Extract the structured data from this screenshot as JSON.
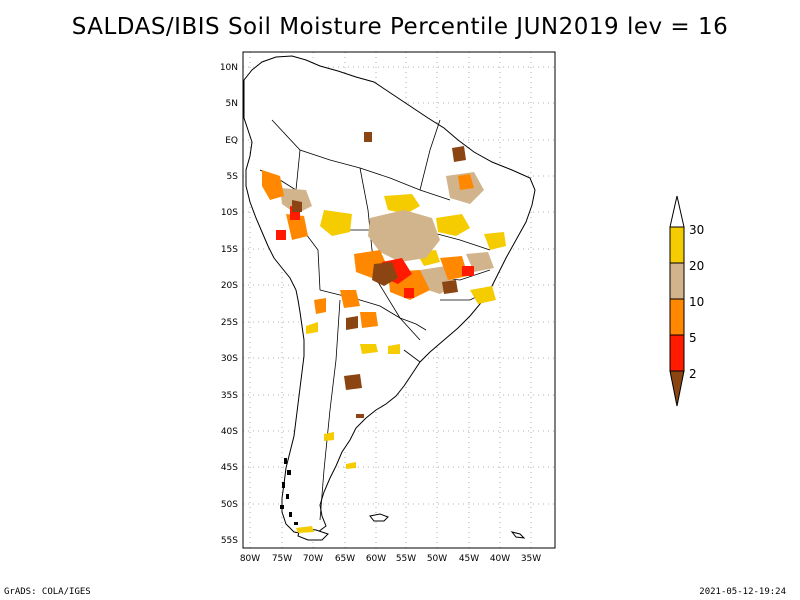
{
  "title": "SALDAS/IBIS Soil Moisture Percentile JUN2019 lev = 16",
  "map": {
    "lat_labels": [
      "10N",
      "5N",
      "EQ",
      "5S",
      "10S",
      "15S",
      "20S",
      "25S",
      "30S",
      "35S",
      "40S",
      "45S",
      "50S",
      "55S"
    ],
    "lon_labels": [
      "80W",
      "75W",
      "70W",
      "65W",
      "60W",
      "55W",
      "50W",
      "45W",
      "40W",
      "35W"
    ],
    "extent": {
      "lon": [
        -80,
        -33
      ],
      "lat": [
        -56,
        11
      ]
    }
  },
  "legend": {
    "labels": [
      "30",
      "20",
      "10",
      "5",
      "2"
    ],
    "colors": {
      "above_30": "#ffffff",
      "20_30": "#f5cc00",
      "10_20": "#d2b48c",
      "5_10": "#ff8800",
      "2_5": "#ff1a00",
      "below_2": "#8b4513"
    }
  },
  "footer": {
    "left": "GrADS: COLA/IGES",
    "right": "2021-05-12-19:24"
  }
}
